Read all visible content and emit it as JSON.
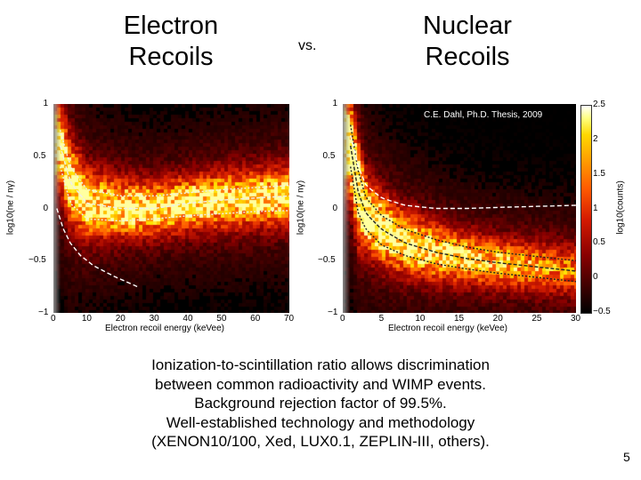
{
  "slide": {
    "title_left": "Electron Recoils",
    "vs": "vs.",
    "title_right": "Nuclear Recoils",
    "caption_lines": [
      "Ionization-to-scintillation ratio allows discrimination",
      "between common radioactivity and WIMP events.",
      "Background rejection factor of 99.5%.",
      "Well-established technology and methodology",
      "(XENON10/100, Xed, LUX0.1,  ZEPLIN-III, others)."
    ],
    "page_number": "5"
  },
  "chart_data": [
    {
      "type": "heatmap",
      "name": "electron-recoils",
      "xlabel": "Electron recoil energy (keVee)",
      "ylabel": "log10(ne / nγ)",
      "xlim": [
        0,
        70
      ],
      "ylim": [
        -1,
        1
      ],
      "xticks": [
        "0",
        "10",
        "20",
        "30",
        "40",
        "50",
        "60",
        "70"
      ],
      "yticks": [
        "1",
        "0.5",
        "0",
        "-0.5",
        "-1"
      ],
      "band_center": {
        "x": [
          2,
          5,
          10,
          20,
          30,
          40,
          50,
          60,
          70
        ],
        "y": [
          0.6,
          0.25,
          0.05,
          0.0,
          0.0,
          0.05,
          0.08,
          0.1,
          0.12
        ]
      },
      "band_lower": {
        "x": [
          2,
          5,
          10,
          20,
          30,
          40,
          50,
          60,
          70
        ],
        "y": [
          0.4,
          0.05,
          -0.1,
          -0.12,
          -0.1,
          -0.07,
          -0.05,
          -0.03,
          -0.02
        ]
      },
      "band_upper": {
        "x": [
          2,
          5,
          10,
          20,
          30,
          40,
          50,
          60,
          70
        ],
        "y": [
          0.75,
          0.4,
          0.18,
          0.12,
          0.12,
          0.15,
          0.18,
          0.2,
          0.22
        ]
      },
      "nr_reference": {
        "x": [
          1,
          3,
          5,
          8,
          12,
          18,
          25
        ],
        "y": [
          0.0,
          -0.2,
          -0.33,
          -0.45,
          -0.55,
          -0.65,
          -0.75
        ]
      }
    },
    {
      "type": "heatmap",
      "name": "nuclear-recoils",
      "xlabel": "Electron recoil energy (keVee)",
      "ylabel": "log10(ne / nγ)",
      "xlim": [
        0,
        30
      ],
      "ylim": [
        -1,
        1
      ],
      "xticks": [
        "0",
        "5",
        "10",
        "15",
        "20",
        "25",
        "30"
      ],
      "yticks": [
        "1",
        "0.5",
        "0",
        "-0.5",
        "-1"
      ],
      "annotation": "C.E. Dahl, Ph.D. Thesis, 2009",
      "band_center": {
        "x": [
          1,
          2,
          3,
          5,
          8,
          12,
          16,
          20,
          25,
          30
        ],
        "y": [
          0.6,
          0.15,
          -0.05,
          -0.2,
          -0.33,
          -0.42,
          -0.48,
          -0.52,
          -0.56,
          -0.6
        ]
      },
      "band_lower": {
        "x": [
          1,
          2,
          3,
          5,
          8,
          12,
          16,
          20,
          25,
          30
        ],
        "y": [
          0.4,
          -0.05,
          -0.2,
          -0.35,
          -0.45,
          -0.53,
          -0.58,
          -0.62,
          -0.66,
          -0.7
        ]
      },
      "band_upper": {
        "x": [
          1,
          2,
          3,
          5,
          8,
          12,
          16,
          20,
          25,
          30
        ],
        "y": [
          0.8,
          0.35,
          0.1,
          -0.07,
          -0.2,
          -0.3,
          -0.37,
          -0.42,
          -0.46,
          -0.5
        ]
      },
      "er_reference": {
        "x": [
          1,
          2,
          3,
          5,
          8,
          12,
          16,
          20,
          25,
          30
        ],
        "y": [
          0.7,
          0.4,
          0.22,
          0.1,
          0.03,
          0.0,
          0.0,
          0.01,
          0.02,
          0.03
        ]
      },
      "colorbar": {
        "label": "log10(counts)",
        "range": [
          -0.5,
          2.5
        ],
        "ticks": [
          "2.5",
          "2",
          "1.5",
          "1",
          "0.5",
          "0",
          "-0.5"
        ]
      }
    }
  ]
}
